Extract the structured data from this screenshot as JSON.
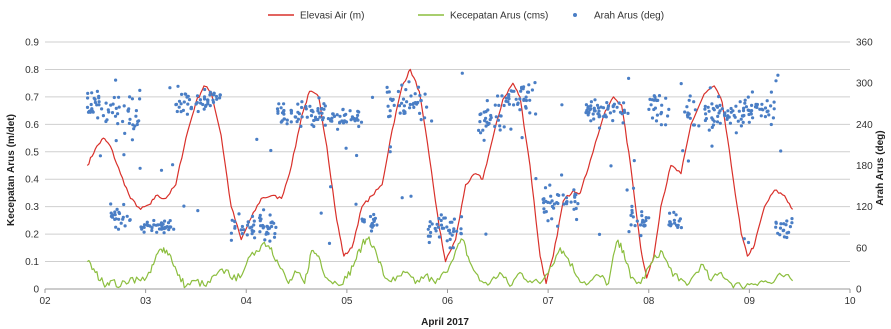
{
  "chart_data": {
    "type": "line",
    "title": "",
    "xlabel": "April 2017",
    "ylabel": "Kecepatan Arus (m/det)",
    "y2label": "Arah Arus (deg)",
    "xlim": [
      2,
      10
    ],
    "xticks": [
      "02",
      "03",
      "04",
      "05",
      "06",
      "07",
      "08",
      "09",
      "10"
    ],
    "ylim": [
      0,
      0.9
    ],
    "yticks": [
      "0",
      "0.1",
      "0.2",
      "0.3",
      "0.4",
      "0.5",
      "0.6",
      "0.7",
      "0.8",
      "0.9"
    ],
    "y2lim": [
      0,
      360
    ],
    "y2ticks": [
      "0",
      "60",
      "120",
      "180",
      "240",
      "300",
      "360"
    ],
    "grid": "horizontal",
    "legend_position": "top",
    "series": [
      {
        "name": "Elevasi Air (m)",
        "axis": "left",
        "kind": "line",
        "color": "#d9312b",
        "points": [
          [
            2.42,
            0.45
          ],
          [
            2.5,
            0.51
          ],
          [
            2.58,
            0.55
          ],
          [
            2.65,
            0.52
          ],
          [
            2.75,
            0.42
          ],
          [
            2.85,
            0.33
          ],
          [
            2.95,
            0.29
          ],
          [
            3.05,
            0.31
          ],
          [
            3.1,
            0.34
          ],
          [
            3.2,
            0.33
          ],
          [
            3.3,
            0.38
          ],
          [
            3.4,
            0.55
          ],
          [
            3.5,
            0.68
          ],
          [
            3.58,
            0.74
          ],
          [
            3.65,
            0.72
          ],
          [
            3.75,
            0.56
          ],
          [
            3.85,
            0.3
          ],
          [
            3.95,
            0.18
          ],
          [
            4.05,
            0.26
          ],
          [
            4.15,
            0.33
          ],
          [
            4.25,
            0.34
          ],
          [
            4.35,
            0.33
          ],
          [
            4.45,
            0.45
          ],
          [
            4.55,
            0.63
          ],
          [
            4.63,
            0.72
          ],
          [
            4.72,
            0.7
          ],
          [
            4.8,
            0.52
          ],
          [
            4.9,
            0.25
          ],
          [
            4.97,
            0.12
          ],
          [
            5.05,
            0.15
          ],
          [
            5.15,
            0.3
          ],
          [
            5.25,
            0.34
          ],
          [
            5.35,
            0.38
          ],
          [
            5.45,
            0.58
          ],
          [
            5.55,
            0.74
          ],
          [
            5.63,
            0.8
          ],
          [
            5.72,
            0.72
          ],
          [
            5.82,
            0.48
          ],
          [
            5.92,
            0.22
          ],
          [
            5.98,
            0.1
          ],
          [
            6.08,
            0.18
          ],
          [
            6.18,
            0.38
          ],
          [
            6.28,
            0.42
          ],
          [
            6.35,
            0.4
          ],
          [
            6.45,
            0.55
          ],
          [
            6.55,
            0.69
          ],
          [
            6.65,
            0.75
          ],
          [
            6.72,
            0.7
          ],
          [
            6.82,
            0.45
          ],
          [
            6.92,
            0.12
          ],
          [
            6.98,
            0.02
          ],
          [
            7.05,
            0.12
          ],
          [
            7.15,
            0.32
          ],
          [
            7.25,
            0.36
          ],
          [
            7.32,
            0.35
          ],
          [
            7.42,
            0.47
          ],
          [
            7.55,
            0.63
          ],
          [
            7.65,
            0.7
          ],
          [
            7.73,
            0.67
          ],
          [
            7.82,
            0.45
          ],
          [
            7.92,
            0.15
          ],
          [
            7.98,
            0.04
          ],
          [
            8.05,
            0.12
          ],
          [
            8.12,
            0.3
          ],
          [
            8.22,
            0.45
          ],
          [
            8.32,
            0.42
          ],
          [
            8.42,
            0.6
          ],
          [
            8.55,
            0.71
          ],
          [
            8.65,
            0.74
          ],
          [
            8.73,
            0.68
          ],
          [
            8.82,
            0.45
          ],
          [
            8.92,
            0.2
          ],
          [
            8.98,
            0.12
          ],
          [
            9.05,
            0.16
          ],
          [
            9.15,
            0.3
          ],
          [
            9.25,
            0.36
          ],
          [
            9.35,
            0.34
          ],
          [
            9.43,
            0.29
          ]
        ]
      },
      {
        "name": "Kecepatan Arus (cms)",
        "axis": "left",
        "kind": "line",
        "color": "#8cbe3f",
        "points": [
          [
            2.42,
            0.1
          ],
          [
            2.5,
            0.06
          ],
          [
            2.58,
            0.02
          ],
          [
            2.65,
            0.03
          ],
          [
            2.75,
            0.01
          ],
          [
            2.85,
            0.04
          ],
          [
            2.95,
            0.03
          ],
          [
            3.05,
            0.06
          ],
          [
            3.12,
            0.13
          ],
          [
            3.18,
            0.15
          ],
          [
            3.25,
            0.12
          ],
          [
            3.32,
            0.05
          ],
          [
            3.4,
            0.01
          ],
          [
            3.5,
            0.03
          ],
          [
            3.6,
            0.01
          ],
          [
            3.7,
            0.05
          ],
          [
            3.8,
            0.07
          ],
          [
            3.9,
            0.03
          ],
          [
            4.0,
            0.09
          ],
          [
            4.1,
            0.14
          ],
          [
            4.18,
            0.17
          ],
          [
            4.25,
            0.15
          ],
          [
            4.32,
            0.09
          ],
          [
            4.42,
            0.02
          ],
          [
            4.5,
            0.06
          ],
          [
            4.58,
            0.02
          ],
          [
            4.65,
            0.14
          ],
          [
            4.72,
            0.12
          ],
          [
            4.8,
            0.04
          ],
          [
            4.9,
            0.02
          ],
          [
            5.0,
            0.04
          ],
          [
            5.08,
            0.1
          ],
          [
            5.15,
            0.16
          ],
          [
            5.22,
            0.19
          ],
          [
            5.3,
            0.12
          ],
          [
            5.38,
            0.04
          ],
          [
            5.48,
            0.03
          ],
          [
            5.58,
            0.06
          ],
          [
            5.68,
            0.02
          ],
          [
            5.78,
            0.05
          ],
          [
            5.88,
            0.02
          ],
          [
            5.98,
            0.06
          ],
          [
            6.08,
            0.14
          ],
          [
            6.15,
            0.18
          ],
          [
            6.22,
            0.1
          ],
          [
            6.32,
            0.03
          ],
          [
            6.42,
            0.02
          ],
          [
            6.52,
            0.06
          ],
          [
            6.62,
            0.01
          ],
          [
            6.72,
            0.06
          ],
          [
            6.82,
            0.03
          ],
          [
            6.92,
            0.02
          ],
          [
            7.02,
            0.08
          ],
          [
            7.12,
            0.15
          ],
          [
            7.2,
            0.11
          ],
          [
            7.3,
            0.04
          ],
          [
            7.4,
            0.02
          ],
          [
            7.5,
            0.05
          ],
          [
            7.6,
            0.02
          ],
          [
            7.68,
            0.17
          ],
          [
            7.75,
            0.14
          ],
          [
            7.82,
            0.04
          ],
          [
            7.92,
            0.02
          ],
          [
            8.02,
            0.09
          ],
          [
            8.12,
            0.14
          ],
          [
            8.2,
            0.08
          ],
          [
            8.3,
            0.03
          ],
          [
            8.4,
            0.02
          ],
          [
            8.52,
            0.09
          ],
          [
            8.62,
            0.03
          ],
          [
            8.72,
            0.06
          ],
          [
            8.82,
            0.02
          ],
          [
            8.92,
            0.01
          ],
          [
            9.02,
            0.02
          ],
          [
            9.12,
            0.03
          ],
          [
            9.22,
            0.02
          ],
          [
            9.32,
            0.05
          ],
          [
            9.43,
            0.03
          ]
        ]
      },
      {
        "name": "Arah Arus (deg)",
        "axis": "right",
        "kind": "scatter",
        "color": "#4a7ec5",
        "clusters": [
          [
            2.42,
            2.7,
            265,
            30
          ],
          [
            2.7,
            2.95,
            255,
            45
          ],
          [
            2.65,
            2.85,
            105,
            25
          ],
          [
            2.95,
            3.3,
            90,
            15
          ],
          [
            3.3,
            3.75,
            275,
            25
          ],
          [
            3.85,
            4.3,
            90,
            30
          ],
          [
            4.3,
            4.8,
            255,
            25
          ],
          [
            4.8,
            5.15,
            250,
            20
          ],
          [
            5.15,
            5.3,
            95,
            20
          ],
          [
            5.4,
            5.8,
            270,
            35
          ],
          [
            5.8,
            6.15,
            90,
            35
          ],
          [
            6.3,
            6.6,
            250,
            40
          ],
          [
            6.6,
            6.9,
            280,
            30
          ],
          [
            6.95,
            7.3,
            120,
            40
          ],
          [
            7.35,
            7.8,
            260,
            25
          ],
          [
            7.8,
            8.0,
            100,
            30
          ],
          [
            8.0,
            8.2,
            260,
            45
          ],
          [
            8.2,
            8.35,
            100,
            25
          ],
          [
            8.35,
            8.95,
            255,
            30
          ],
          [
            8.95,
            9.25,
            260,
            30
          ],
          [
            9.25,
            9.43,
            90,
            20
          ]
        ]
      }
    ]
  }
}
